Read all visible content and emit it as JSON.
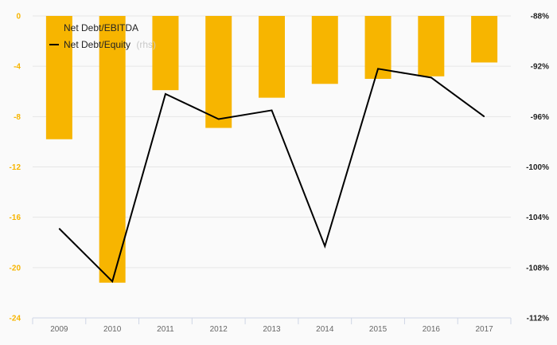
{
  "chart_data": {
    "type": "bar",
    "categories": [
      "2009",
      "2010",
      "2011",
      "2012",
      "2013",
      "2014",
      "2015",
      "2016",
      "2017"
    ],
    "series": [
      {
        "name": "Net Debt/EBITDA",
        "type": "bar",
        "axis": "left",
        "color": "#f7b500",
        "values": [
          -9.8,
          -21.2,
          -5.9,
          -8.9,
          -6.5,
          -5.4,
          -5.0,
          -4.8,
          -3.7
        ]
      },
      {
        "name": "Net Debt/Equity",
        "name_suffix": "(rhs)",
        "type": "line",
        "axis": "right",
        "color": "#000000",
        "values": [
          -104.9,
          -109.1,
          -94.2,
          -96.2,
          -95.5,
          -106.3,
          -92.2,
          -92.9,
          -96.0
        ]
      }
    ],
    "y_left": {
      "ylim": [
        -24,
        0
      ],
      "ticks": [
        0,
        -4,
        -8,
        -12,
        -16,
        -20,
        -24
      ],
      "tick_labels": [
        "0",
        "-4",
        "-8",
        "-12",
        "-16",
        "-20",
        "-24"
      ]
    },
    "y_right": {
      "ylim": [
        -112,
        -88
      ],
      "ticks": [
        -88,
        -92,
        -96,
        -100,
        -104,
        -108,
        -112
      ],
      "tick_labels": [
        "-88%",
        "-92%",
        "-96%",
        "-100%",
        "-104%",
        "-108%",
        "-112%"
      ]
    },
    "grid": true,
    "legend_position": "top-left"
  }
}
